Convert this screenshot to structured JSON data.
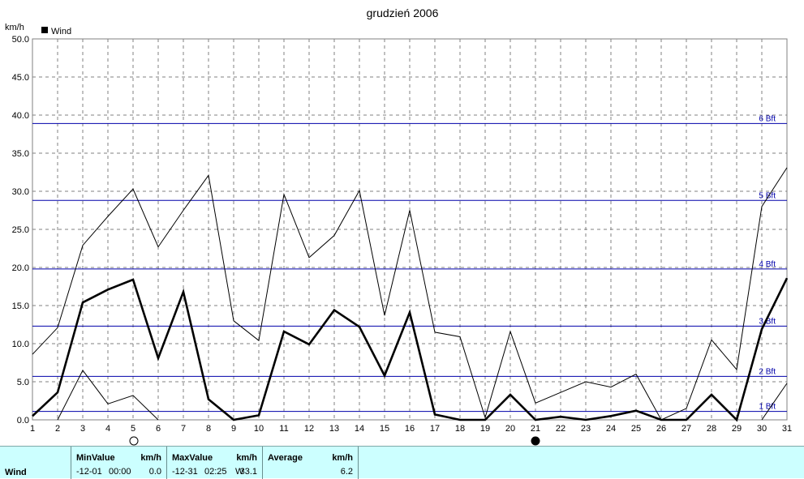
{
  "chart_data": {
    "type": "line",
    "title": "grudzień 2006",
    "ylabel": "km/h",
    "legend": "Wind",
    "legend_position": "top-left",
    "grid": true,
    "ylim": [
      0,
      50
    ],
    "xlim": [
      1,
      31
    ],
    "y_ticks": [
      "0.0",
      "5.0",
      "10.0",
      "15.0",
      "20.0",
      "25.0",
      "30.0",
      "35.0",
      "40.0",
      "45.0",
      "50.0"
    ],
    "x_ticks": [
      "1",
      "2",
      "3",
      "4",
      "5",
      "6",
      "7",
      "8",
      "9",
      "10",
      "11",
      "12",
      "13",
      "14",
      "15",
      "16",
      "17",
      "18",
      "19",
      "20",
      "21",
      "22",
      "23",
      "24",
      "25",
      "26",
      "27",
      "28",
      "29",
      "30",
      "31"
    ],
    "x": [
      1,
      2,
      3,
      4,
      5,
      6,
      7,
      8,
      9,
      10,
      11,
      12,
      13,
      14,
      15,
      16,
      17,
      18,
      19,
      20,
      21,
      22,
      23,
      24,
      25,
      26,
      27,
      28,
      29,
      30,
      31
    ],
    "series": [
      {
        "name": "Wind",
        "role": "average",
        "values": [
          0.5,
          3.6,
          15.4,
          17.1,
          18.4,
          8.1,
          16.8,
          2.7,
          0.0,
          0.6,
          11.6,
          9.9,
          14.4,
          12.2,
          5.8,
          14.1,
          0.7,
          0.0,
          0.0,
          3.3,
          0.0,
          0.4,
          0.0,
          0.5,
          1.2,
          0.0,
          0.0,
          3.3,
          0.0,
          11.9,
          18.6
        ]
      },
      {
        "role": "max",
        "values": [
          8.6,
          12.1,
          22.9,
          26.7,
          30.3,
          22.7,
          27.5,
          32.1,
          13.0,
          10.4,
          29.6,
          21.3,
          24.2,
          30.1,
          13.7,
          27.5,
          11.5,
          10.9,
          0.3,
          11.6,
          2.2,
          3.6,
          5.0,
          4.3,
          6.0,
          0.0,
          1.5,
          10.5,
          6.6,
          28.0,
          33.1
        ]
      },
      {
        "role": "min",
        "x": [
          2,
          3,
          4,
          5,
          6
        ],
        "values": [
          0.0,
          6.5,
          2.1,
          3.2,
          0.0
        ],
        "x2": [
          30,
          31
        ],
        "values2": [
          0.0,
          4.8
        ]
      }
    ],
    "beaufort_lines": [
      {
        "label": "1 Bft",
        "value": 1.1
      },
      {
        "label": "2 Bft",
        "value": 5.7
      },
      {
        "label": "3 Bft",
        "value": 12.3
      },
      {
        "label": "4 Bft",
        "value": 19.8
      },
      {
        "label": "5 Bft",
        "value": 28.8
      },
      {
        "label": "6 Bft",
        "value": 38.9
      }
    ],
    "moon_phases": [
      {
        "day": 5,
        "phase": "full"
      },
      {
        "day": 21,
        "phase": "new"
      }
    ],
    "colors": {
      "average": "#000000",
      "max": "#000000",
      "min": "#000000",
      "beaufort": "#0000aa",
      "grid": "#808080",
      "panel": "#ccffff"
    }
  },
  "stats": {
    "row_label": "Wind",
    "min": {
      "header": "MinValue",
      "unit": "km/h",
      "date": "-12-01",
      "time": "00:00",
      "value": "0.0"
    },
    "max": {
      "header": "MaxValue",
      "unit": "km/h",
      "date": "-12-31",
      "time": "02:25",
      "dir": "W",
      "value": "33.1"
    },
    "avg": {
      "header": "Average",
      "unit": "km/h",
      "value": "6.2"
    }
  }
}
